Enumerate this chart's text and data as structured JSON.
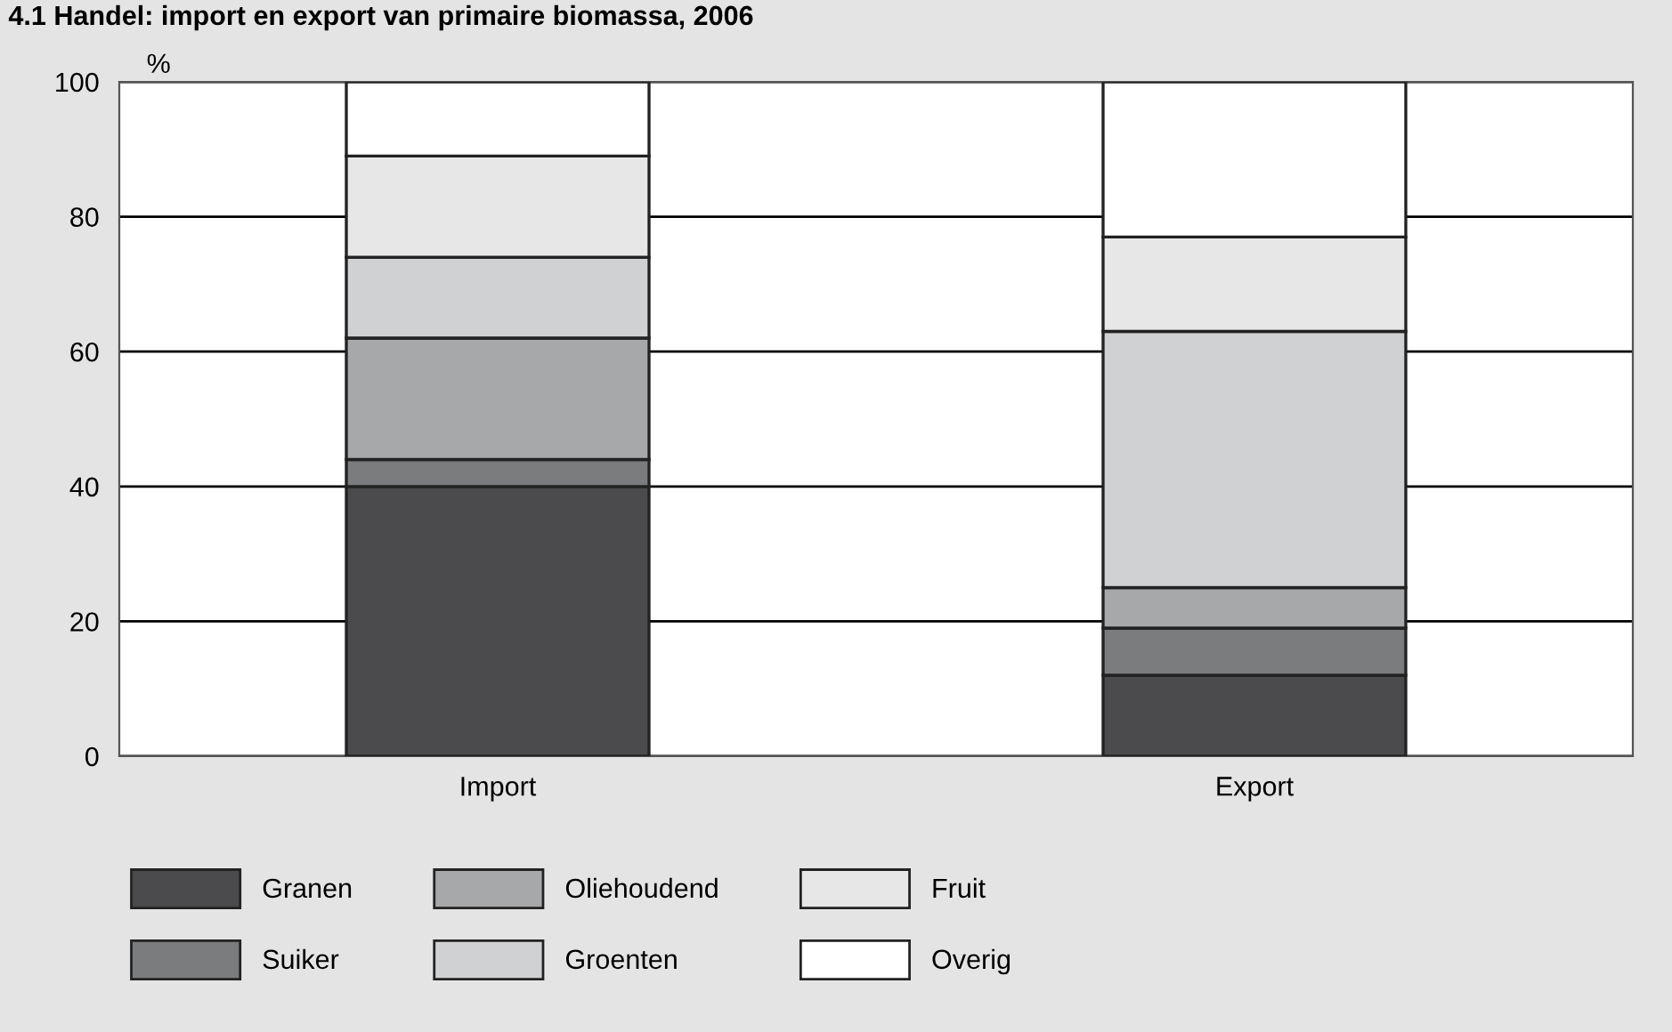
{
  "chart_data": {
    "type": "bar",
    "title": "4.1 Handel: import en export van primaire biomassa, 2006",
    "ylabel": "%",
    "categories": [
      "Import",
      "Export"
    ],
    "stacked": true,
    "series": [
      {
        "name": "Granen",
        "color": "#4b4b4d",
        "values": [
          40,
          12
        ]
      },
      {
        "name": "Suiker",
        "color": "#7b7c7e",
        "values": [
          4,
          7
        ]
      },
      {
        "name": "Oliehoudend",
        "color": "#a7a8a9",
        "values": [
          18,
          6
        ]
      },
      {
        "name": "Groenten",
        "color": "#d0d1d3",
        "values": [
          12,
          38
        ]
      },
      {
        "name": "Fruit",
        "color": "#e6e7e6",
        "values": [
          15,
          14
        ]
      },
      {
        "name": "Overig",
        "color": "#ffffff",
        "values": [
          11,
          23
        ]
      }
    ],
    "ylim": [
      0,
      100
    ],
    "yticks": [
      0,
      20,
      40,
      60,
      80,
      100
    ],
    "grid": "y",
    "legend": "bottom"
  }
}
